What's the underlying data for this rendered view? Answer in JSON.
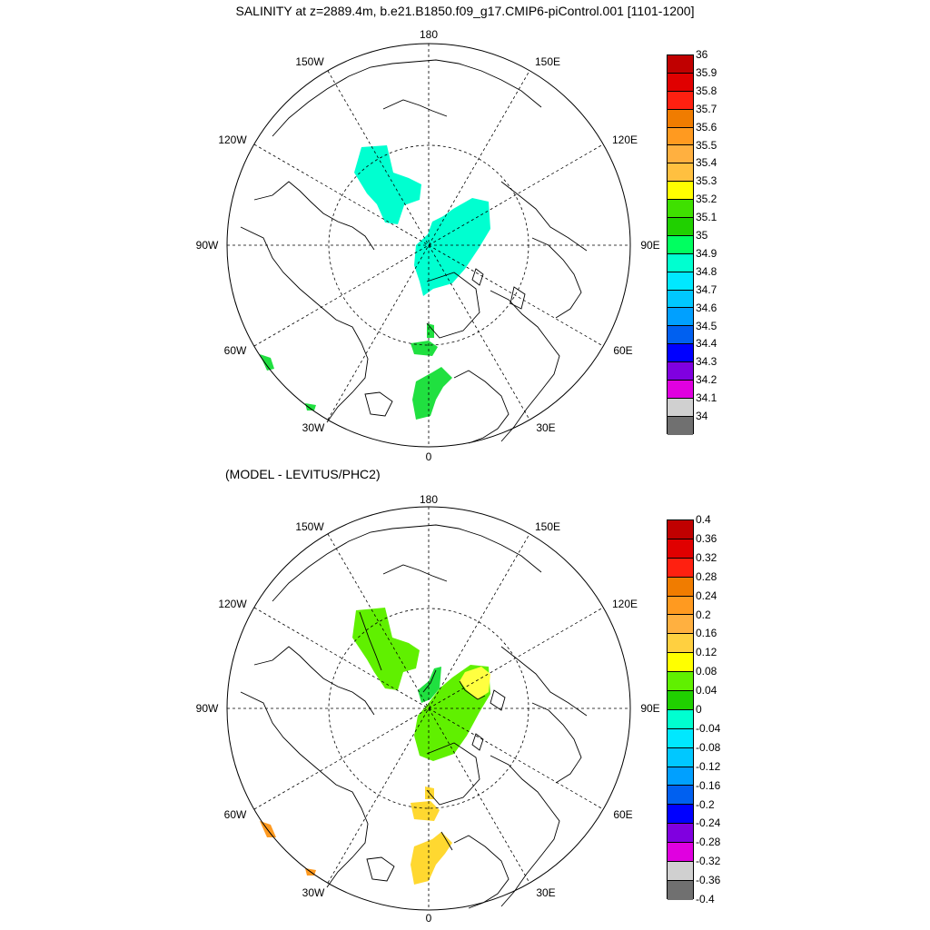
{
  "titles": {
    "top": "SALINITY at z=2889.4m, b.e21.B1850.f09_g17.CMIP6-piControl.001 [1101-1200]",
    "bottom": "(MODEL - LEVITUS/PHC2)"
  },
  "lon_labels": {
    "deg180": "180",
    "w150": "150W",
    "e150": "150E",
    "w120": "120W",
    "e120": "120E",
    "w90": "90W",
    "e90": "90E",
    "w60": "60W",
    "e60": "60E",
    "w30": "30W",
    "e30": "30E",
    "deg0": "0"
  },
  "colorbar_top": {
    "labels": [
      "36",
      "35.9",
      "35.8",
      "35.7",
      "35.6",
      "35.5",
      "35.4",
      "35.3",
      "35.2",
      "35.1",
      "35",
      "34.9",
      "34.8",
      "34.7",
      "34.6",
      "34.5",
      "34.4",
      "34.3",
      "34.2",
      "34.1",
      "34"
    ],
    "colors": [
      "#c00000",
      "#e00000",
      "#ff2010",
      "#f07c00",
      "#ff9a20",
      "#ffb040",
      "#ffc040",
      "#ffff00",
      "#3fe000",
      "#20d000",
      "#00ff60",
      "#00ffd0",
      "#00e8ff",
      "#00c8ff",
      "#00a0ff",
      "#0060f0",
      "#0000ff",
      "#8000e0",
      "#e000e0",
      "#d0d0d0",
      "#707070"
    ]
  },
  "colorbar_bottom": {
    "labels": [
      "0.4",
      "0.36",
      "0.32",
      "0.28",
      "0.24",
      "0.2",
      "0.16",
      "0.12",
      "0.08",
      "0.04",
      "0",
      "-0.04",
      "-0.08",
      "-0.12",
      "-0.16",
      "-0.2",
      "-0.24",
      "-0.28",
      "-0.32",
      "-0.36",
      "-0.4"
    ],
    "colors": [
      "#c00000",
      "#e00000",
      "#ff2010",
      "#f07c00",
      "#ff9a20",
      "#ffb040",
      "#ffd040",
      "#ffff00",
      "#60f000",
      "#20d000",
      "#00ffd0",
      "#00e8ff",
      "#00c8ff",
      "#00a0ff",
      "#0060f0",
      "#0000ff",
      "#8000e0",
      "#e000e0",
      "#d0d0d0",
      "#707070"
    ]
  },
  "field_colors": {
    "top_main": "#00ffd0",
    "top_atlantic": "#20e040",
    "bottom_main": "#60f000",
    "bottom_eurasian": "#20e040",
    "bottom_positive": "#ffff40",
    "bottom_atlantic": "#ffd830",
    "bottom_edge": "#ff9a20"
  }
}
